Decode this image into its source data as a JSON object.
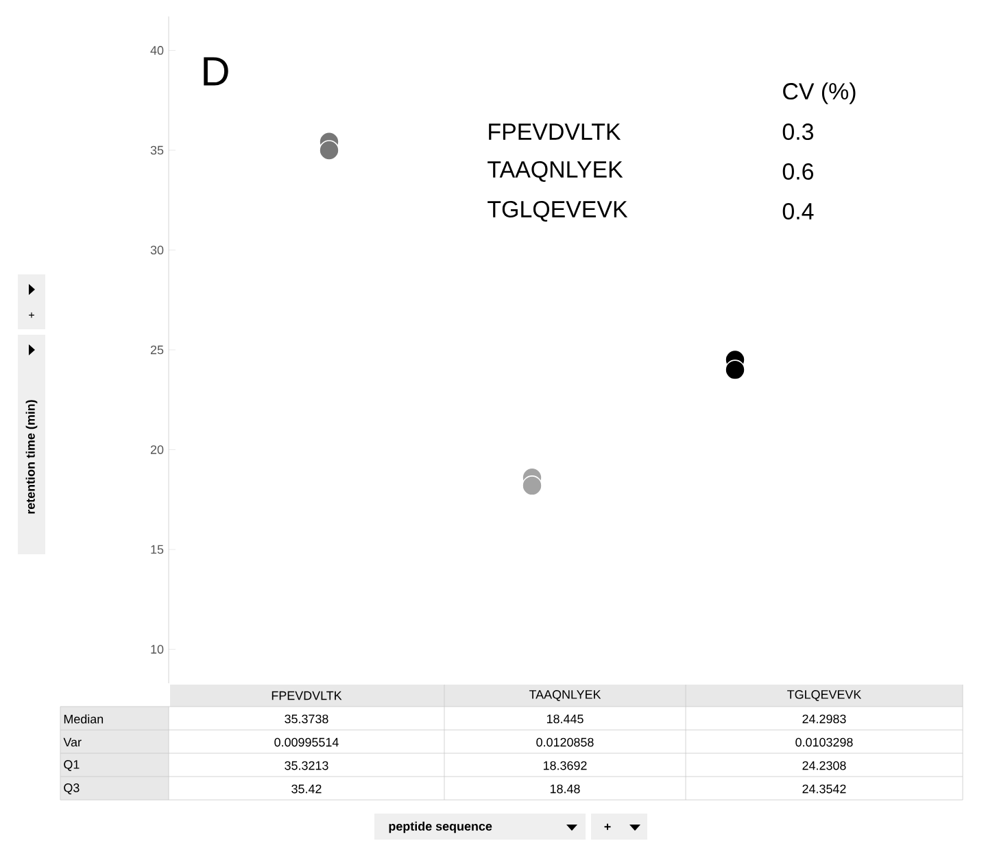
{
  "chart_data": {
    "type": "scatter",
    "categories": [
      "FPEVDVLTK",
      "TAAQNLYEK",
      "TGLQEVEVK"
    ],
    "series": [
      {
        "colors": [
          "#777777",
          "#a3a3a3",
          "#000000"
        ],
        "values": [
          35.42,
          18.6,
          24.5
        ]
      },
      {
        "colors": [
          "#777777",
          "#a3a3a3",
          "#000000"
        ],
        "values": [
          35.0,
          18.2,
          24.0
        ]
      }
    ],
    "marker": "circle",
    "ylim": [
      8.3,
      41.7
    ],
    "yticks": [
      10,
      15,
      20,
      25,
      30,
      35,
      40
    ],
    "annotations": [
      "D",
      "CV (%)",
      "FPEVDVLTK",
      "0.3",
      "TAAQNLYEK",
      "0.6",
      "TGLQEVEVK",
      "0.4",
      "Median",
      "Var",
      "Q1",
      "Q3",
      "35.3738",
      "18.445",
      "24.2983",
      "0.00995514",
      "0.0120858",
      "0.0103298",
      "35.3213",
      "18.3692",
      "24.2308",
      "35.42",
      "18.48",
      "24.3542",
      "+",
      "+",
      "retention time (min)",
      "peptide sequence"
    ]
  }
}
